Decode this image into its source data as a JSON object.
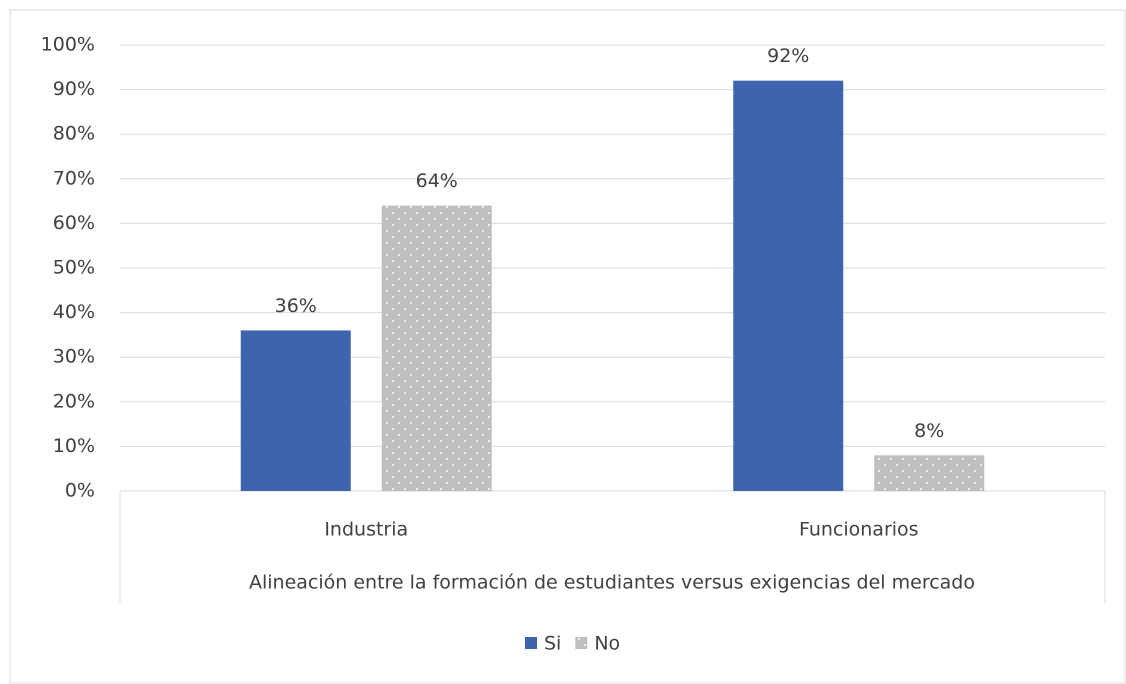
{
  "chart_data": {
    "type": "bar",
    "x_label": "Alineación entre la formación de estudiantes versus exigencias del mercado",
    "categories": [
      "Industria",
      "Funcionarios"
    ],
    "series": [
      {
        "name": "Si",
        "color": "#3f64ae",
        "values": [
          36,
          92
        ],
        "value_labels": [
          "36%",
          "92%"
        ]
      },
      {
        "name": "No",
        "color": "#bfbfbf",
        "pattern": "dots",
        "values": [
          64,
          8
        ],
        "value_labels": [
          "64%",
          "8%"
        ]
      }
    ],
    "ylim": [
      0,
      100
    ],
    "yticks": [
      {
        "value": 0,
        "label": "0%"
      },
      {
        "value": 10,
        "label": "10%"
      },
      {
        "value": 20,
        "label": "20%"
      },
      {
        "value": 30,
        "label": "30%"
      },
      {
        "value": 40,
        "label": "40%"
      },
      {
        "value": 50,
        "label": "50%"
      },
      {
        "value": 60,
        "label": "60%"
      },
      {
        "value": 70,
        "label": "70%"
      },
      {
        "value": 80,
        "label": "80%"
      },
      {
        "value": 90,
        "label": "90%"
      },
      {
        "value": 100,
        "label": "100%"
      }
    ],
    "grid": true,
    "legend": "bottom"
  }
}
